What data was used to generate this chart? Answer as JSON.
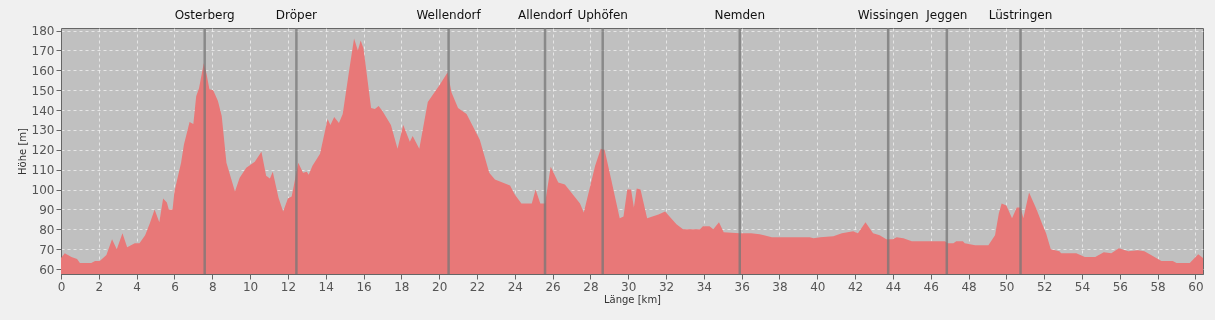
{
  "chart_data": {
    "type": "area",
    "xlabel": "Länge [km]",
    "ylabel": "Höhe [m]",
    "x": [
      0,
      0.2,
      0.55,
      0.85,
      1.0,
      1.6,
      1.8,
      2.05,
      2.4,
      2.7,
      2.95,
      3.25,
      3.5,
      3.9,
      4.15,
      4.45,
      4.7,
      4.95,
      5.2,
      5.4,
      5.6,
      5.7,
      5.9,
      6.0,
      6.35,
      6.5,
      6.8,
      7.0,
      7.15,
      7.3,
      7.55,
      7.7,
      7.85,
      8.05,
      8.3,
      8.5,
      8.75,
      9.2,
      9.45,
      9.8,
      10.25,
      10.6,
      10.85,
      11.05,
      11.2,
      11.5,
      11.75,
      12.0,
      12.2,
      12.55,
      12.8,
      13.0,
      13.1,
      13.3,
      13.7,
      14.1,
      14.25,
      14.45,
      14.7,
      14.9,
      15.25,
      15.5,
      15.7,
      15.85,
      16.0,
      16.4,
      16.6,
      16.8,
      17.0,
      17.45,
      17.8,
      18.1,
      18.45,
      18.6,
      18.95,
      19.4,
      20.05,
      20.45,
      20.65,
      21.0,
      21.45,
      22.15,
      22.65,
      22.95,
      23.75,
      24.0,
      24.35,
      24.9,
      25.1,
      25.35,
      25.6,
      25.9,
      26.3,
      26.65,
      27.45,
      27.65,
      28.25,
      28.55,
      28.75,
      29.1,
      29.55,
      29.75,
      29.95,
      30.15,
      30.3,
      30.45,
      30.65,
      31.0,
      31.6,
      31.95,
      32.55,
      32.9,
      33.8,
      33.95,
      34.3,
      34.5,
      34.8,
      35.05,
      35.9,
      36.5,
      36.95,
      37.6,
      39.6,
      39.8,
      40.15,
      40.85,
      41.3,
      41.9,
      42.15,
      42.55,
      42.95,
      43.3,
      43.65,
      44.0,
      44.2,
      44.55,
      45.0,
      46.75,
      46.9,
      47.2,
      47.35,
      47.7,
      47.8,
      48.35,
      49.05,
      49.4,
      49.6,
      49.75,
      50.0,
      50.3,
      50.55,
      50.75,
      50.9,
      51.2,
      51.6,
      51.9,
      52.1,
      52.35,
      52.8,
      52.9,
      53.7,
      54.15,
      54.7,
      55.15,
      55.55,
      55.95,
      56.45,
      56.95,
      57.3,
      57.65,
      58.2,
      58.8,
      59.0,
      59.7,
      60.15,
      60.4
    ],
    "series": [
      {
        "color": "#e87878",
        "values": [
          65.5,
          68,
          66,
          65,
          63,
          63,
          64,
          64,
          67,
          75,
          70,
          78,
          71,
          73,
          73,
          77,
          83,
          90,
          83.5,
          95.5,
          93.5,
          90,
          90,
          99,
          113.5,
          122.5,
          134,
          133,
          147,
          151,
          163.5,
          158,
          150.5,
          150,
          144.5,
          137,
          113.5,
          99,
          106,
          111,
          114,
          119,
          107,
          105.5,
          109,
          96,
          89,
          95.5,
          96.5,
          113.5,
          108.5,
          109,
          107.5,
          112,
          118,
          135.5,
          132.5,
          136.5,
          133.5,
          138,
          160.5,
          176,
          170,
          175,
          171,
          141,
          140.5,
          142,
          139.5,
          132.5,
          120.5,
          132.5,
          124,
          127,
          120.5,
          144,
          153,
          159,
          149,
          141,
          138,
          125,
          108.5,
          105,
          102,
          97.5,
          93,
          93,
          100,
          93,
          93,
          111.5,
          103.5,
          102.5,
          93,
          88.5,
          112,
          120.5,
          120,
          105,
          85.5,
          86.5,
          100,
          100,
          91,
          100.5,
          100,
          85.5,
          87.5,
          89,
          82.5,
          80,
          80,
          81.5,
          81.5,
          80,
          83.5,
          78.5,
          78,
          78,
          77.5,
          76,
          76,
          75.5,
          76,
          76.5,
          78,
          79,
          78,
          83.5,
          78,
          77,
          75,
          75,
          76,
          75.5,
          74,
          74,
          73,
          73,
          74,
          74,
          73,
          72,
          72,
          77,
          88,
          93,
          92,
          85.5,
          91,
          91,
          85.5,
          98.5,
          90,
          82.5,
          78,
          70,
          69,
          68,
          68,
          66,
          66,
          68.5,
          68,
          70.5,
          69,
          69.5,
          69,
          67,
          64,
          64,
          63,
          63,
          67.5,
          65.5
        ]
      }
    ],
    "xlim": [
      0,
      60.4
    ],
    "ylim": [
      57.5,
      181.3
    ],
    "xticks": [
      0,
      2,
      4,
      6,
      8,
      10,
      12,
      14,
      16,
      18,
      20,
      22,
      24,
      26,
      28,
      30,
      32,
      34,
      36,
      38,
      40,
      42,
      44,
      46,
      48,
      50,
      52,
      54,
      56,
      58,
      60
    ],
    "yticks": [
      60,
      70,
      80,
      90,
      100,
      110,
      120,
      130,
      140,
      150,
      160,
      170,
      180
    ],
    "grid": true,
    "ref_lines": [
      {
        "axis": "x",
        "value": 7.6,
        "label": "Osterberg",
        "color": "#777777"
      },
      {
        "axis": "x",
        "value": 12.45,
        "label": "Dröper",
        "color": "#777777"
      },
      {
        "axis": "x",
        "value": 20.5,
        "label": "Wellendorf",
        "color": "#777777"
      },
      {
        "axis": "x",
        "value": 25.6,
        "label": "Allendorf",
        "color": "#777777"
      },
      {
        "axis": "x",
        "value": 28.65,
        "label": "Uphöfen",
        "color": "#777777"
      },
      {
        "axis": "x",
        "value": 35.9,
        "label": "Nemden",
        "color": "#777777"
      },
      {
        "axis": "x",
        "value": 43.75,
        "label": "Wissingen",
        "color": "#777777"
      },
      {
        "axis": "x",
        "value": 46.85,
        "label": "Jeggen",
        "color": "#777777"
      },
      {
        "axis": "x",
        "value": 50.75,
        "label": "Lüstringen",
        "color": "#777777"
      }
    ]
  }
}
